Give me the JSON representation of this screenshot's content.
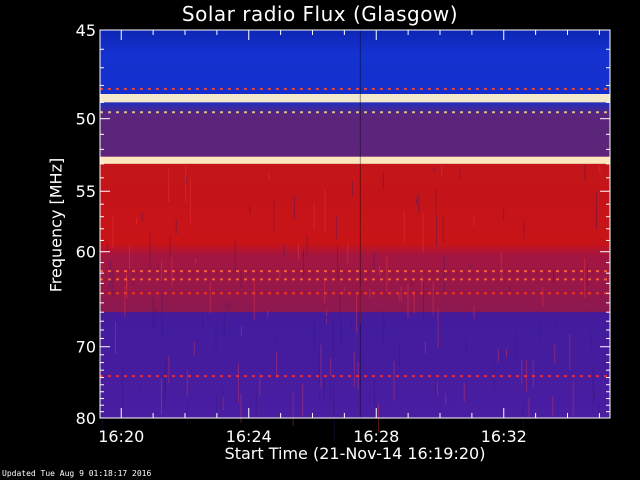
{
  "chart_data": {
    "type": "heatmap",
    "title": "Solar radio Flux (Glasgow)",
    "xlabel": "Start Time (21-Nov-14 16:19:20)",
    "ylabel": "Frequency [MHz]",
    "xlim": [
      "16:19:20",
      "16:35:20"
    ],
    "ylim": [
      45,
      80
    ],
    "x_ticks": [
      "16:20",
      "16:24",
      "16:28",
      "16:32"
    ],
    "y_ticks": [
      45,
      50,
      55,
      60,
      70,
      80
    ],
    "bands": [
      {
        "from": 45,
        "to": 48.5,
        "level": "low"
      },
      {
        "from": 48.5,
        "to": 49.0,
        "level": "max"
      },
      {
        "from": 49.0,
        "to": 52.5,
        "level": "low"
      },
      {
        "from": 52.5,
        "to": 53.0,
        "level": "max"
      },
      {
        "from": 53.0,
        "to": 60.5,
        "level": "high"
      },
      {
        "from": 60.5,
        "to": 66.0,
        "level": "high"
      },
      {
        "from": 66.0,
        "to": 80.0,
        "level": "mid"
      }
    ],
    "colors": {
      "low": "#1030c8",
      "mid": "#4a1a9c",
      "high": "#c81418",
      "max": "#fff2c8"
    }
  },
  "footer": {
    "updated": "Updated Tue Aug  9 01:18:17 2016"
  }
}
